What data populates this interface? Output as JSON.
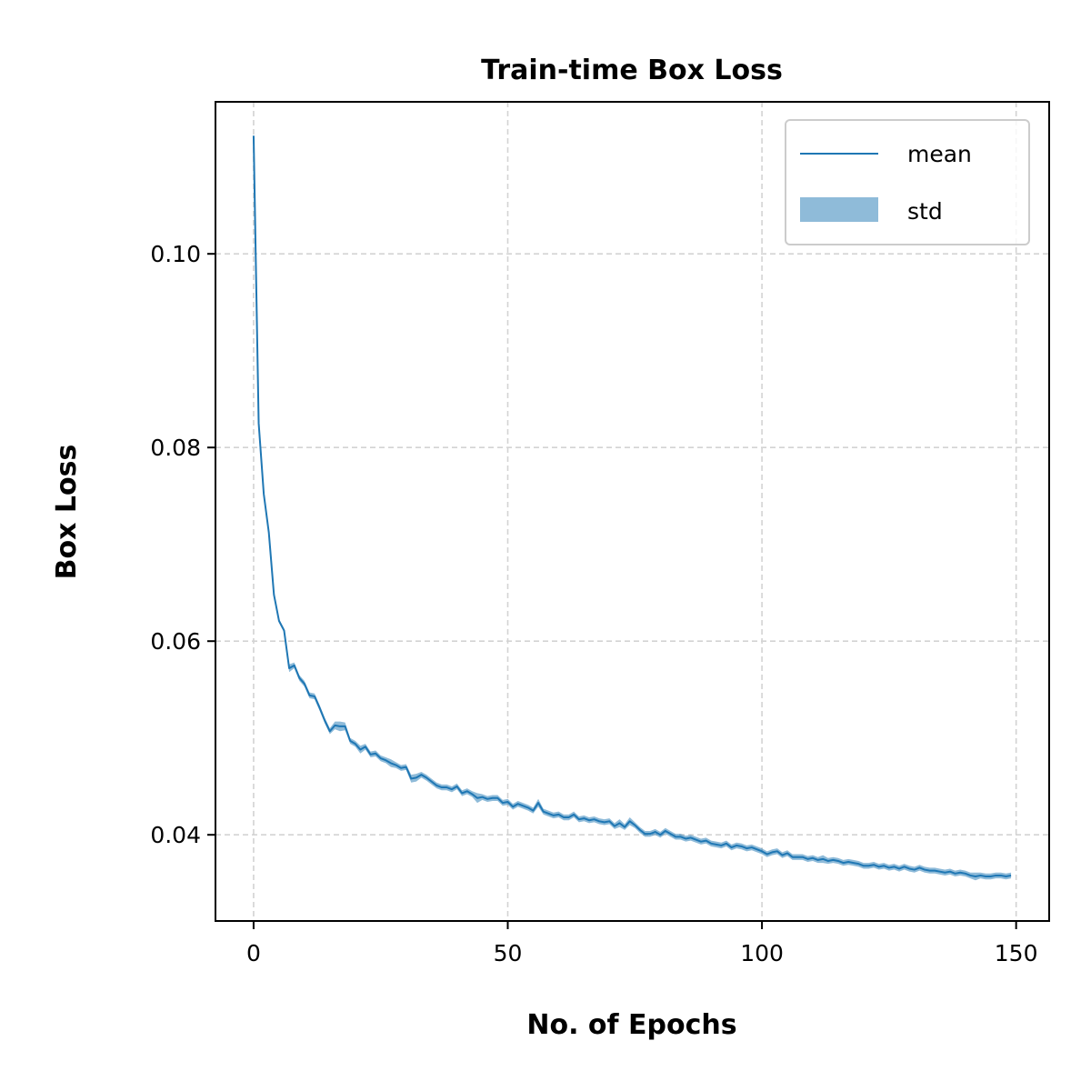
{
  "chart_data": {
    "type": "line",
    "title": "Train-time Box Loss",
    "xlabel": "No. of Epochs",
    "ylabel": "Box Loss",
    "xlim": [
      -7.5,
      156.5
    ],
    "ylim": [
      0.0311,
      0.1157
    ],
    "xticks": [
      0,
      50,
      100,
      150
    ],
    "xtick_labels": [
      "0",
      "50",
      "100",
      "150"
    ],
    "yticks": [
      0.04,
      0.06,
      0.08,
      0.1
    ],
    "ytick_labels": [
      "0.04",
      "0.06",
      "0.08",
      "0.10"
    ],
    "grid": true,
    "legend_position": "top-right",
    "colors": {
      "mean": "#1f77b4",
      "std": "#1f77b4",
      "grid": "#d3d3d3"
    },
    "series": [
      {
        "name": "mean",
        "x": [
          0,
          1,
          2,
          3,
          4,
          5,
          6,
          7,
          8,
          9,
          10,
          11,
          12,
          13,
          14,
          15,
          16,
          17,
          18,
          19,
          20,
          21,
          22,
          23,
          24,
          25,
          26,
          27,
          28,
          29,
          30,
          31,
          32,
          33,
          34,
          35,
          36,
          37,
          38,
          39,
          40,
          41,
          42,
          43,
          44,
          45,
          46,
          47,
          48,
          49,
          50,
          51,
          52,
          53,
          54,
          55,
          56,
          57,
          58,
          59,
          60,
          61,
          62,
          63,
          64,
          65,
          66,
          67,
          68,
          69,
          70,
          71,
          72,
          73,
          74,
          75,
          76,
          77,
          78,
          79,
          80,
          81,
          82,
          83,
          84,
          85,
          86,
          87,
          88,
          89,
          90,
          91,
          92,
          93,
          94,
          95,
          96,
          97,
          98,
          99,
          100,
          101,
          102,
          103,
          104,
          105,
          106,
          107,
          108,
          109,
          110,
          111,
          112,
          113,
          114,
          115,
          116,
          117,
          118,
          119,
          120,
          121,
          122,
          123,
          124,
          125,
          126,
          127,
          128,
          129,
          130,
          131,
          132,
          133,
          134,
          135,
          136,
          137,
          138,
          139,
          140,
          141,
          142,
          143,
          144,
          145,
          146,
          147,
          148,
          149
        ],
        "y": [
          0.1122,
          0.0825,
          0.0752,
          0.0712,
          0.0648,
          0.0621,
          0.0611,
          0.0572,
          0.0575,
          0.0562,
          0.0556,
          0.0544,
          0.0543,
          0.0531,
          0.0518,
          0.0507,
          0.0513,
          0.0512,
          0.0512,
          0.0497,
          0.0494,
          0.0488,
          0.0491,
          0.0483,
          0.0484,
          0.0479,
          0.0477,
          0.0474,
          0.0472,
          0.0469,
          0.047,
          0.0458,
          0.0459,
          0.0462,
          0.0459,
          0.0455,
          0.0451,
          0.0449,
          0.0449,
          0.0447,
          0.045,
          0.0443,
          0.0445,
          0.0442,
          0.0438,
          0.0439,
          0.0437,
          0.0438,
          0.0438,
          0.0433,
          0.0434,
          0.0429,
          0.0432,
          0.043,
          0.0428,
          0.0425,
          0.0433,
          0.0424,
          0.0422,
          0.042,
          0.0421,
          0.0418,
          0.0418,
          0.0421,
          0.0416,
          0.0417,
          0.0415,
          0.0416,
          0.0414,
          0.0413,
          0.0414,
          0.0409,
          0.0412,
          0.0408,
          0.0414,
          0.041,
          0.0405,
          0.0401,
          0.0401,
          0.0403,
          0.04,
          0.0404,
          0.0401,
          0.0398,
          0.0398,
          0.0396,
          0.0397,
          0.0395,
          0.0393,
          0.0394,
          0.0391,
          0.039,
          0.0389,
          0.0391,
          0.0387,
          0.0389,
          0.0388,
          0.0386,
          0.0387,
          0.0385,
          0.0383,
          0.038,
          0.0382,
          0.0383,
          0.0379,
          0.0381,
          0.0377,
          0.0377,
          0.0377,
          0.0375,
          0.0376,
          0.0374,
          0.0375,
          0.0373,
          0.0374,
          0.0373,
          0.0371,
          0.0372,
          0.0371,
          0.037,
          0.0368,
          0.0368,
          0.0369,
          0.0367,
          0.0368,
          0.0366,
          0.0367,
          0.0365,
          0.0367,
          0.0365,
          0.0364,
          0.0366,
          0.0364,
          0.0363,
          0.0363,
          0.0362,
          0.0361,
          0.0362,
          0.036,
          0.0361,
          0.036,
          0.0358,
          0.0357,
          0.0358,
          0.0357,
          0.0357,
          0.0358,
          0.0358,
          0.0357,
          0.0358
        ],
        "std": [
          0.0003,
          0.0002,
          0.0002,
          0.0002,
          0.0002,
          0.0002,
          0.0002,
          0.0004,
          0.0003,
          0.0003,
          0.0003,
          0.0003,
          0.0003,
          0.0003,
          0.0003,
          0.0003,
          0.0004,
          0.0005,
          0.0004,
          0.0003,
          0.0003,
          0.0004,
          0.0003,
          0.0003,
          0.0003,
          0.0003,
          0.0003,
          0.0004,
          0.0003,
          0.0003,
          0.0003,
          0.0004,
          0.0004,
          0.0003,
          0.0003,
          0.0003,
          0.0003,
          0.0003,
          0.0003,
          0.0003,
          0.0003,
          0.0003,
          0.0003,
          0.0003,
          0.0005,
          0.0003,
          0.0003,
          0.0003,
          0.0003,
          0.0003,
          0.0003,
          0.0003,
          0.0003,
          0.0003,
          0.0003,
          0.0003,
          0.0004,
          0.0003,
          0.0003,
          0.0003,
          0.0003,
          0.0003,
          0.0003,
          0.0003,
          0.0003,
          0.0003,
          0.0003,
          0.0003,
          0.0003,
          0.0003,
          0.0003,
          0.0003,
          0.0004,
          0.0003,
          0.0004,
          0.0003,
          0.0003,
          0.0003,
          0.0003,
          0.0003,
          0.0003,
          0.0003,
          0.0003,
          0.0003,
          0.0003,
          0.0003,
          0.0003,
          0.0003,
          0.0003,
          0.0003,
          0.0003,
          0.0003,
          0.0003,
          0.0003,
          0.0003,
          0.0003,
          0.0003,
          0.0003,
          0.0003,
          0.0003,
          0.0003,
          0.0003,
          0.0003,
          0.0003,
          0.0003,
          0.0003,
          0.0003,
          0.0003,
          0.0003,
          0.0003,
          0.0003,
          0.0003,
          0.0004,
          0.0003,
          0.0003,
          0.0003,
          0.0003,
          0.0003,
          0.0003,
          0.0003,
          0.0003,
          0.0003,
          0.0003,
          0.0003,
          0.0003,
          0.0003,
          0.0003,
          0.0003,
          0.0003,
          0.0003,
          0.0003,
          0.0003,
          0.0003,
          0.0003,
          0.0003,
          0.0003,
          0.0003,
          0.0003,
          0.0003,
          0.0003,
          0.0003,
          0.0003,
          0.0004,
          0.0003,
          0.0003,
          0.0003,
          0.0003,
          0.0003,
          0.0003,
          0.0003
        ]
      }
    ],
    "legend": [
      {
        "label": "mean",
        "kind": "line"
      },
      {
        "label": "std",
        "kind": "band"
      }
    ]
  }
}
